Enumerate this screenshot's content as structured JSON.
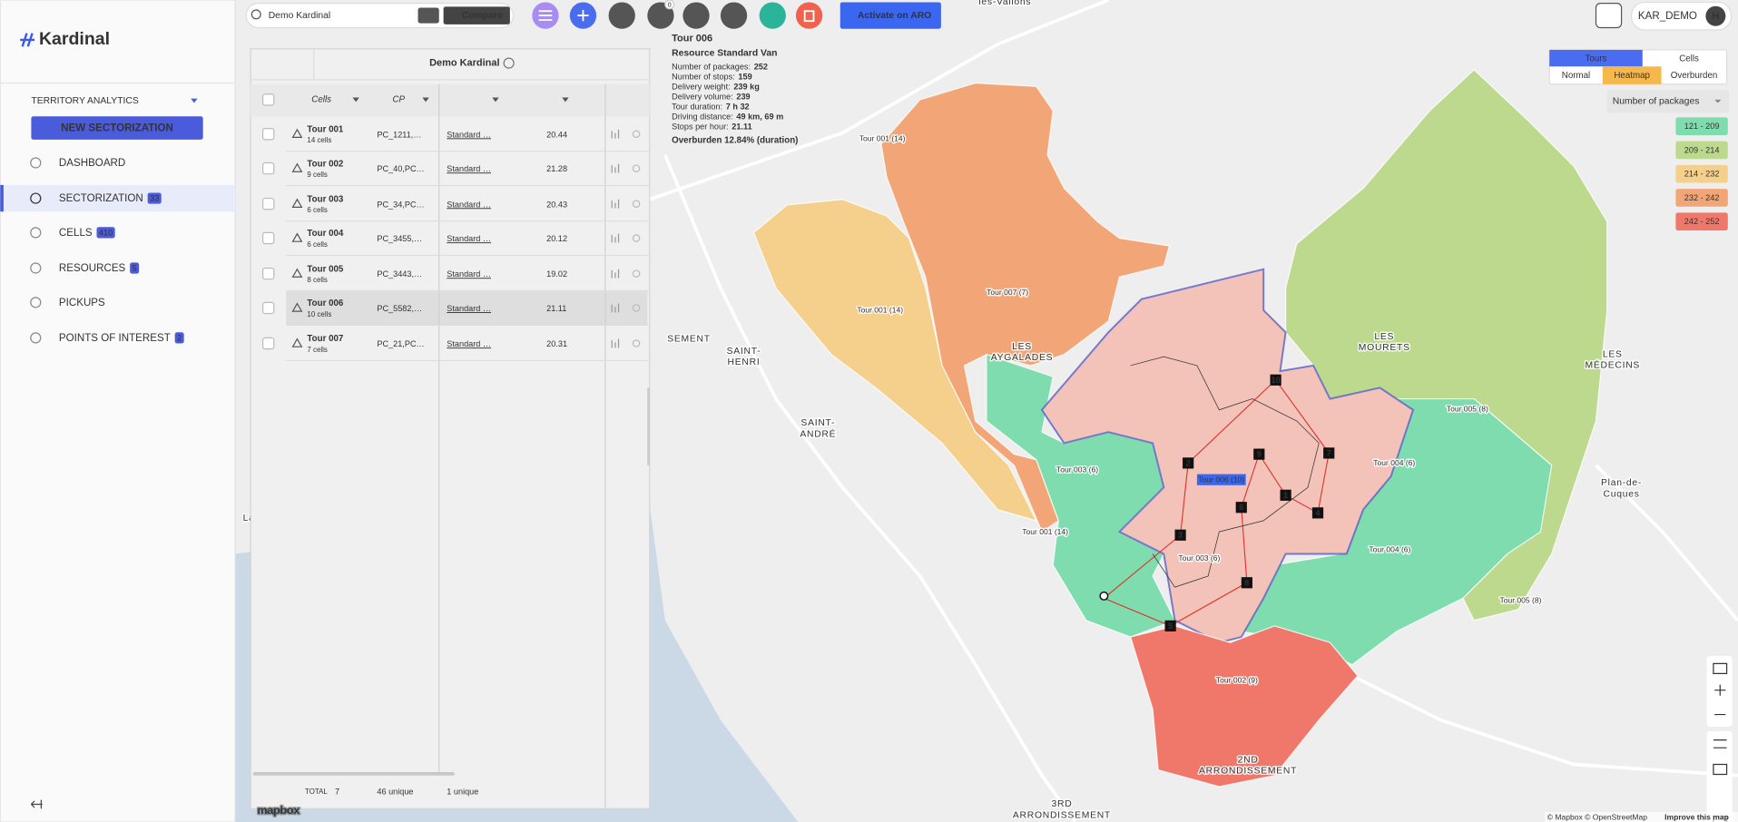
{
  "sidebar": {
    "logo": "Kardinal",
    "section": "TERRITORY ANALYTICS",
    "new_button": "NEW SECTORIZATION",
    "nav": [
      {
        "label": "DASHBOARD"
      },
      {
        "label": "SECTORIZATION",
        "badge": 33
      },
      {
        "label": "CELLS",
        "badge": 410
      },
      {
        "label": "RESOURCES",
        "badge": 5
      },
      {
        "label": "PICKUPS"
      },
      {
        "label": "POINTS OF INTEREST",
        "badge": 2
      }
    ]
  },
  "topbar": {
    "search": "Demo Kardinal",
    "compare": "Compare",
    "notification_count": 0,
    "activate": "Activate on ARO",
    "user": "KAR_DEMO",
    "avatar": "H"
  },
  "panel": {
    "title": "Demo Kardinal",
    "columns": [
      "Cells",
      "CP"
    ],
    "rows": [
      {
        "tour": "Tour 001",
        "cells": "14 cells",
        "cp": "PC_1211,…",
        "resource": "Standard …",
        "value": 20.44
      },
      {
        "tour": "Tour 002",
        "cells": "9 cells",
        "cp": "PC_40,PC…",
        "resource": "Standard …",
        "value": 21.28
      },
      {
        "tour": "Tour 003",
        "cells": "6 cells",
        "cp": "PC_34,PC…",
        "resource": "Standard …",
        "value": 20.43
      },
      {
        "tour": "Tour 004",
        "cells": "6 cells",
        "cp": "PC_3455,…",
        "resource": "Standard …",
        "value": 20.12
      },
      {
        "tour": "Tour 005",
        "cells": "8 cells",
        "cp": "PC_3443,…",
        "resource": "Standard …",
        "value": 19.02
      },
      {
        "tour": "Tour 006",
        "cells": "10 cells",
        "cp": "PC_5582,…",
        "resource": "Standard …",
        "value": 21.11
      },
      {
        "tour": "Tour 007",
        "cells": "7 cells",
        "cp": "PC_21,PC…",
        "resource": "Standard …",
        "value": 20.31
      }
    ],
    "footer": {
      "total_label": "TOTAL",
      "total": 7,
      "cp_unique": "46 unique",
      "resource_unique": "1 unique"
    }
  },
  "tooltip": {
    "title": "Tour 006",
    "subtitle": "Resource Standard Van",
    "stats": [
      {
        "label": "Number of packages:",
        "value": "252"
      },
      {
        "label": "Number of stops:",
        "value": "159"
      },
      {
        "label": "Delivery weight:",
        "value": "239 kg"
      },
      {
        "label": "Delivery volume:",
        "value": "239"
      },
      {
        "label": "Tour duration:",
        "value": "7 h 32"
      },
      {
        "label": "Driving distance:",
        "value": "49 km, 69 m"
      },
      {
        "label": "Stops per hour:",
        "value": "21.11"
      }
    ],
    "overburden": "Overburden 12.84% (duration)"
  },
  "map": {
    "tour_labels": [
      "Tour 001 (14)",
      "Tour 001 (14)",
      "Tour 007 (7)",
      "Tour 003 (6)",
      "Tour 006 (10)",
      "Tour 004 (6)",
      "Tour 001 (14)",
      "Tour 004 (6)",
      "Tour 003 (6)",
      "Tour 005 (8)",
      "Tour 005 (8)",
      "Tour 002 (9)"
    ],
    "places": [
      {
        "lines": [
          "SAINT-",
          "HENRI"
        ]
      },
      {
        "lines": [
          "LES",
          "AYGALADES"
        ]
      },
      {
        "lines": [
          "SAINT-",
          "ANDRÉ"
        ]
      },
      {
        "lines": [
          "LES",
          "MOURETS"
        ]
      },
      {
        "lines": [
          "LES",
          "MÉDECINS"
        ]
      },
      {
        "lines": [
          "Plan-de-",
          "Cuques"
        ]
      },
      {
        "lines": [
          "2ND",
          "ARRONDISSEMENT"
        ]
      },
      {
        "lines": [
          "3RD",
          "ARRONDISSEMENT"
        ]
      },
      {
        "lines": [
          "SEMENT"
        ]
      },
      {
        "lines": [
          "les-Vallons"
        ]
      },
      {
        "lines": [
          "La V"
        ]
      }
    ],
    "stops": [
      1,
      2,
      3,
      4,
      5,
      6,
      7,
      8,
      9,
      10
    ]
  },
  "legend": {
    "modes": [
      "Tours",
      "Cells"
    ],
    "views": [
      "Normal",
      "Heatmap",
      "Overburden"
    ],
    "metric": "Number of packages",
    "ranges": [
      {
        "label": "121 - 209",
        "color": "#7fdcae"
      },
      {
        "label": "209 - 214",
        "color": "#bcd98e"
      },
      {
        "label": "214 - 232",
        "color": "#f5d08c"
      },
      {
        "label": "232 - 242",
        "color": "#f2a576"
      },
      {
        "label": "242 - 252",
        "color": "#f0786b"
      }
    ]
  },
  "attribution": {
    "brand": "mapbox",
    "credits": "© Mapbox © OpenStreetMap",
    "improve": "Improve this map"
  }
}
